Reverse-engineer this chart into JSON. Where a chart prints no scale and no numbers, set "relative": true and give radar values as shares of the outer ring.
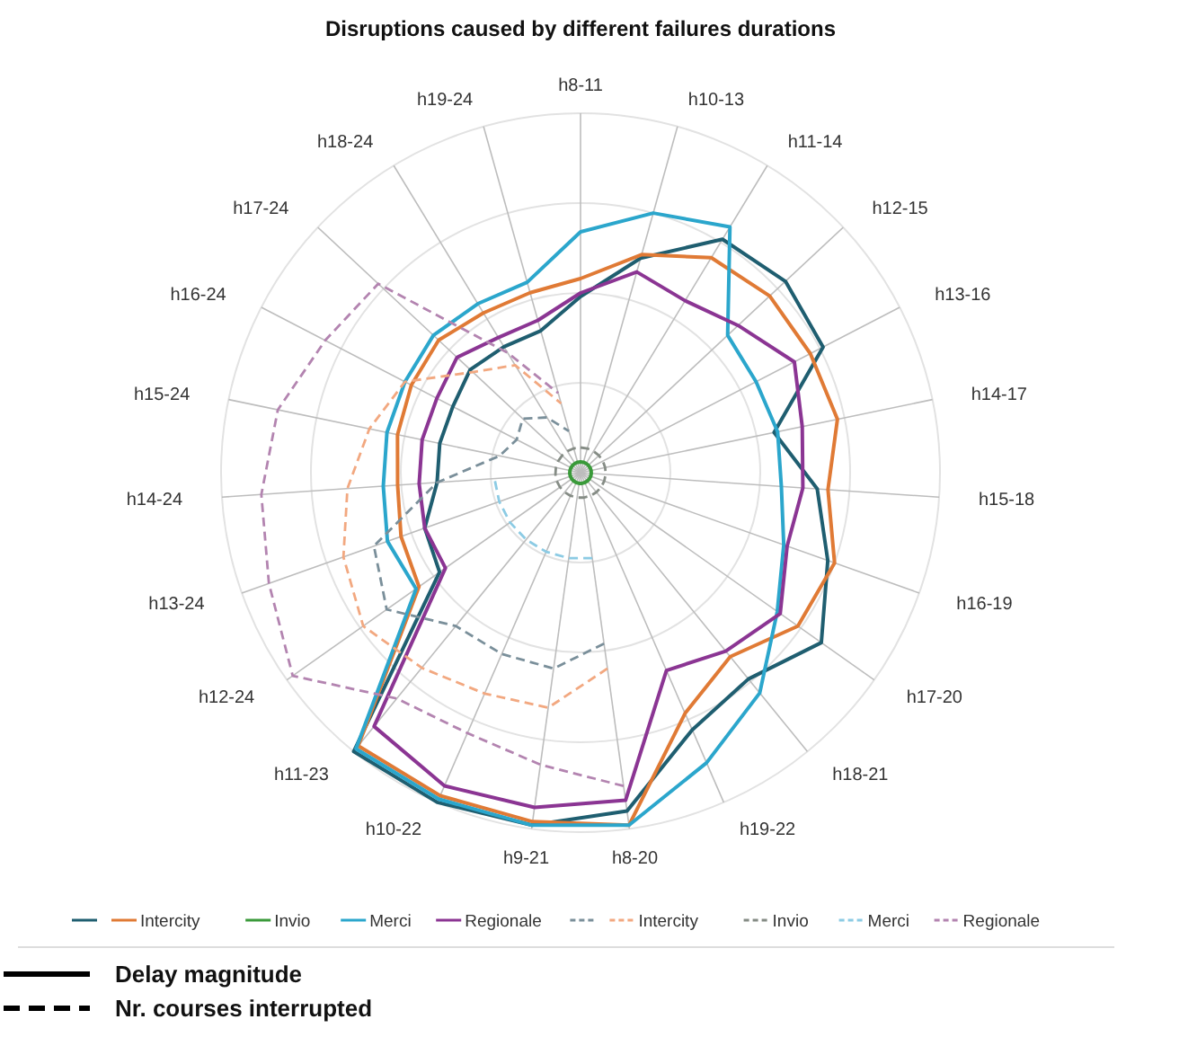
{
  "chart_data": {
    "type": "radar",
    "title": "Disruptions caused by different failures durations",
    "relative": true,
    "grid": true,
    "legend": "bottom",
    "marker": "none",
    "categories": [
      "h8-11",
      "h10-13",
      "h11-14",
      "h12-15",
      "h13-16",
      "h14-17",
      "h15-18",
      "h16-19",
      "h17-20",
      "h18-21",
      "h19-22",
      "h8-20",
      "h9-21",
      "h10-22",
      "h11-23",
      "h12-24",
      "h13-24",
      "h14-24",
      "h15-24",
      "h16-24",
      "h17-24",
      "h18-24",
      "h19-24"
    ],
    "annotations": [
      "Delay magnitude",
      "Nr. courses interrupted"
    ],
    "series": [
      {
        "color": "#1f5e70",
        "line_style": "solid",
        "values": [
          0.49,
          0.62,
          0.76,
          0.78,
          0.76,
          0.55,
          0.66,
          0.73,
          0.82,
          0.74,
          0.78,
          0.95,
          0.99,
          1.0,
          1.0,
          0.48,
          0.46,
          0.4,
          0.4,
          0.4,
          0.42,
          0.41,
          0.41
        ]
      },
      {
        "name": "Intercity",
        "color": "#e07a35",
        "line_style": "solid",
        "values": [
          0.54,
          0.63,
          0.7,
          0.72,
          0.72,
          0.73,
          0.69,
          0.75,
          0.74,
          0.66,
          0.73,
          0.99,
          0.98,
          0.98,
          0.98,
          0.55,
          0.53,
          0.51,
          0.52,
          0.53,
          0.54,
          0.52,
          0.52
        ]
      },
      {
        "name": "Invio",
        "color": "#3a9a3a",
        "line_style": "solid",
        "values": [
          0.03,
          0.03,
          0.03,
          0.03,
          0.03,
          0.03,
          0.03,
          0.03,
          0.03,
          0.03,
          0.03,
          0.03,
          0.03,
          0.03,
          0.03,
          0.03,
          0.03,
          0.03,
          0.03,
          0.03,
          0.03,
          0.03,
          0.03
        ]
      },
      {
        "name": "Merci",
        "color": "#2ba6cc",
        "line_style": "solid",
        "values": [
          0.67,
          0.75,
          0.8,
          0.56,
          0.55,
          0.56,
          0.56,
          0.6,
          0.67,
          0.79,
          0.88,
          0.99,
          0.99,
          0.99,
          0.99,
          0.56,
          0.57,
          0.55,
          0.55,
          0.55,
          0.56,
          0.55,
          0.55
        ]
      },
      {
        "name": "Regionale",
        "color": "#8b3593",
        "line_style": "solid",
        "values": [
          0.5,
          0.58,
          0.56,
          0.6,
          0.67,
          0.63,
          0.62,
          0.61,
          0.68,
          0.64,
          0.6,
          0.92,
          0.94,
          0.95,
          0.91,
          0.46,
          0.46,
          0.45,
          0.45,
          0.45,
          0.47,
          0.44,
          0.44
        ]
      },
      {
        "color": "#7a8f9a",
        "line_style": "dashed",
        "values": [
          null,
          null,
          null,
          null,
          null,
          null,
          null,
          null,
          null,
          null,
          null,
          0.48,
          0.55,
          0.55,
          0.55,
          0.66,
          0.61,
          0.4,
          0.23,
          0.2,
          0.22,
          0.18,
          0.12
        ]
      },
      {
        "name": "Intercity",
        "color": "#f2a880",
        "line_style": "dashed",
        "values": [
          null,
          null,
          null,
          null,
          null,
          null,
          null,
          null,
          null,
          null,
          null,
          0.55,
          0.66,
          0.67,
          0.7,
          0.74,
          0.7,
          0.65,
          0.6,
          0.55,
          0.41,
          0.35,
          0.2
        ]
      },
      {
        "name": "Invio",
        "color": "#858c85",
        "line_style": "dashed",
        "values": [
          0.07,
          0.07,
          0.07,
          0.07,
          0.07,
          0.07,
          0.07,
          0.07,
          0.07,
          0.07,
          0.07,
          0.07,
          0.07,
          0.07,
          0.07,
          0.07,
          0.07,
          0.07,
          0.07,
          0.07,
          0.07,
          0.07,
          0.07
        ]
      },
      {
        "name": "Merci",
        "color": "#8ccbe4",
        "line_style": "dashed",
        "values": [
          null,
          null,
          null,
          null,
          null,
          null,
          null,
          null,
          null,
          null,
          null,
          0.24,
          0.24,
          0.24,
          0.24,
          0.24,
          0.24,
          0.24,
          null,
          null,
          null,
          null,
          null
        ]
      },
      {
        "name": "Regionale",
        "color": "#b384b0",
        "line_style": "dashed",
        "values": [
          null,
          null,
          null,
          null,
          null,
          null,
          null,
          null,
          null,
          null,
          null,
          0.88,
          0.82,
          0.79,
          0.81,
          0.98,
          0.92,
          0.89,
          0.86,
          0.8,
          0.77,
          0.39,
          0.23
        ]
      }
    ]
  }
}
